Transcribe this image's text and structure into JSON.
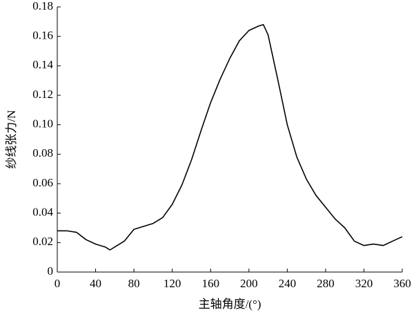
{
  "chart_data": {
    "type": "line",
    "x_label": "主轴角度/(°)",
    "y_label": "纱线张力/N",
    "x": [
      0,
      10,
      20,
      30,
      40,
      50,
      55,
      60,
      70,
      80,
      90,
      100,
      110,
      120,
      130,
      140,
      150,
      160,
      170,
      180,
      190,
      200,
      210,
      215,
      220,
      230,
      240,
      250,
      260,
      270,
      280,
      290,
      300,
      310,
      320,
      330,
      340,
      350,
      360
    ],
    "series": [
      {
        "color": "#000000",
        "values": [
          0.028,
          0.028,
          0.027,
          0.022,
          0.019,
          0.017,
          0.015,
          0.017,
          0.021,
          0.029,
          0.031,
          0.033,
          0.037,
          0.046,
          0.059,
          0.076,
          0.096,
          0.115,
          0.131,
          0.145,
          0.157,
          0.164,
          0.167,
          0.168,
          0.161,
          0.131,
          0.1,
          0.078,
          0.063,
          0.052,
          0.044,
          0.036,
          0.03,
          0.021,
          0.018,
          0.019,
          0.018,
          0.021,
          0.024
        ]
      }
    ],
    "xlim": [
      0,
      360
    ],
    "xticks": [
      0,
      40,
      80,
      120,
      160,
      200,
      240,
      280,
      320,
      360
    ],
    "ylim": [
      0,
      0.18
    ],
    "yticks": [
      0,
      0.02,
      0.04,
      0.06,
      0.08,
      {
        "value": 0.1,
        "label": "0.10"
      },
      0.12,
      0.14,
      0.16,
      0.18
    ]
  }
}
